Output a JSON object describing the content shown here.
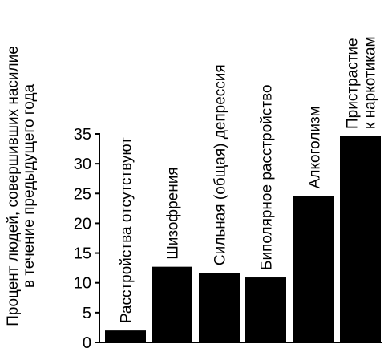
{
  "chart_data": {
    "type": "bar",
    "title": "",
    "xlabel": "",
    "ylabel": [
      "Процент людей, совершивших насилие",
      "в течение предыдущего года"
    ],
    "ylim": [
      0,
      35
    ],
    "yticks": [
      0,
      5,
      10,
      15,
      20,
      25,
      30,
      35
    ],
    "grid": false,
    "categories": [
      [
        "Расстройства отсутствуют"
      ],
      [
        "Шизофрения"
      ],
      [
        "Сильная (общая) депрессия"
      ],
      [
        "Биполярное расстройство"
      ],
      [
        "Алкоголизм"
      ],
      [
        "Пристрастие",
        "к наркотикам"
      ]
    ],
    "values": [
      2,
      12.7,
      11.7,
      10.9,
      24.6,
      34.6
    ],
    "colors": {
      "bar": "#000000",
      "axis": "#000000",
      "background": "#ffffff"
    }
  }
}
